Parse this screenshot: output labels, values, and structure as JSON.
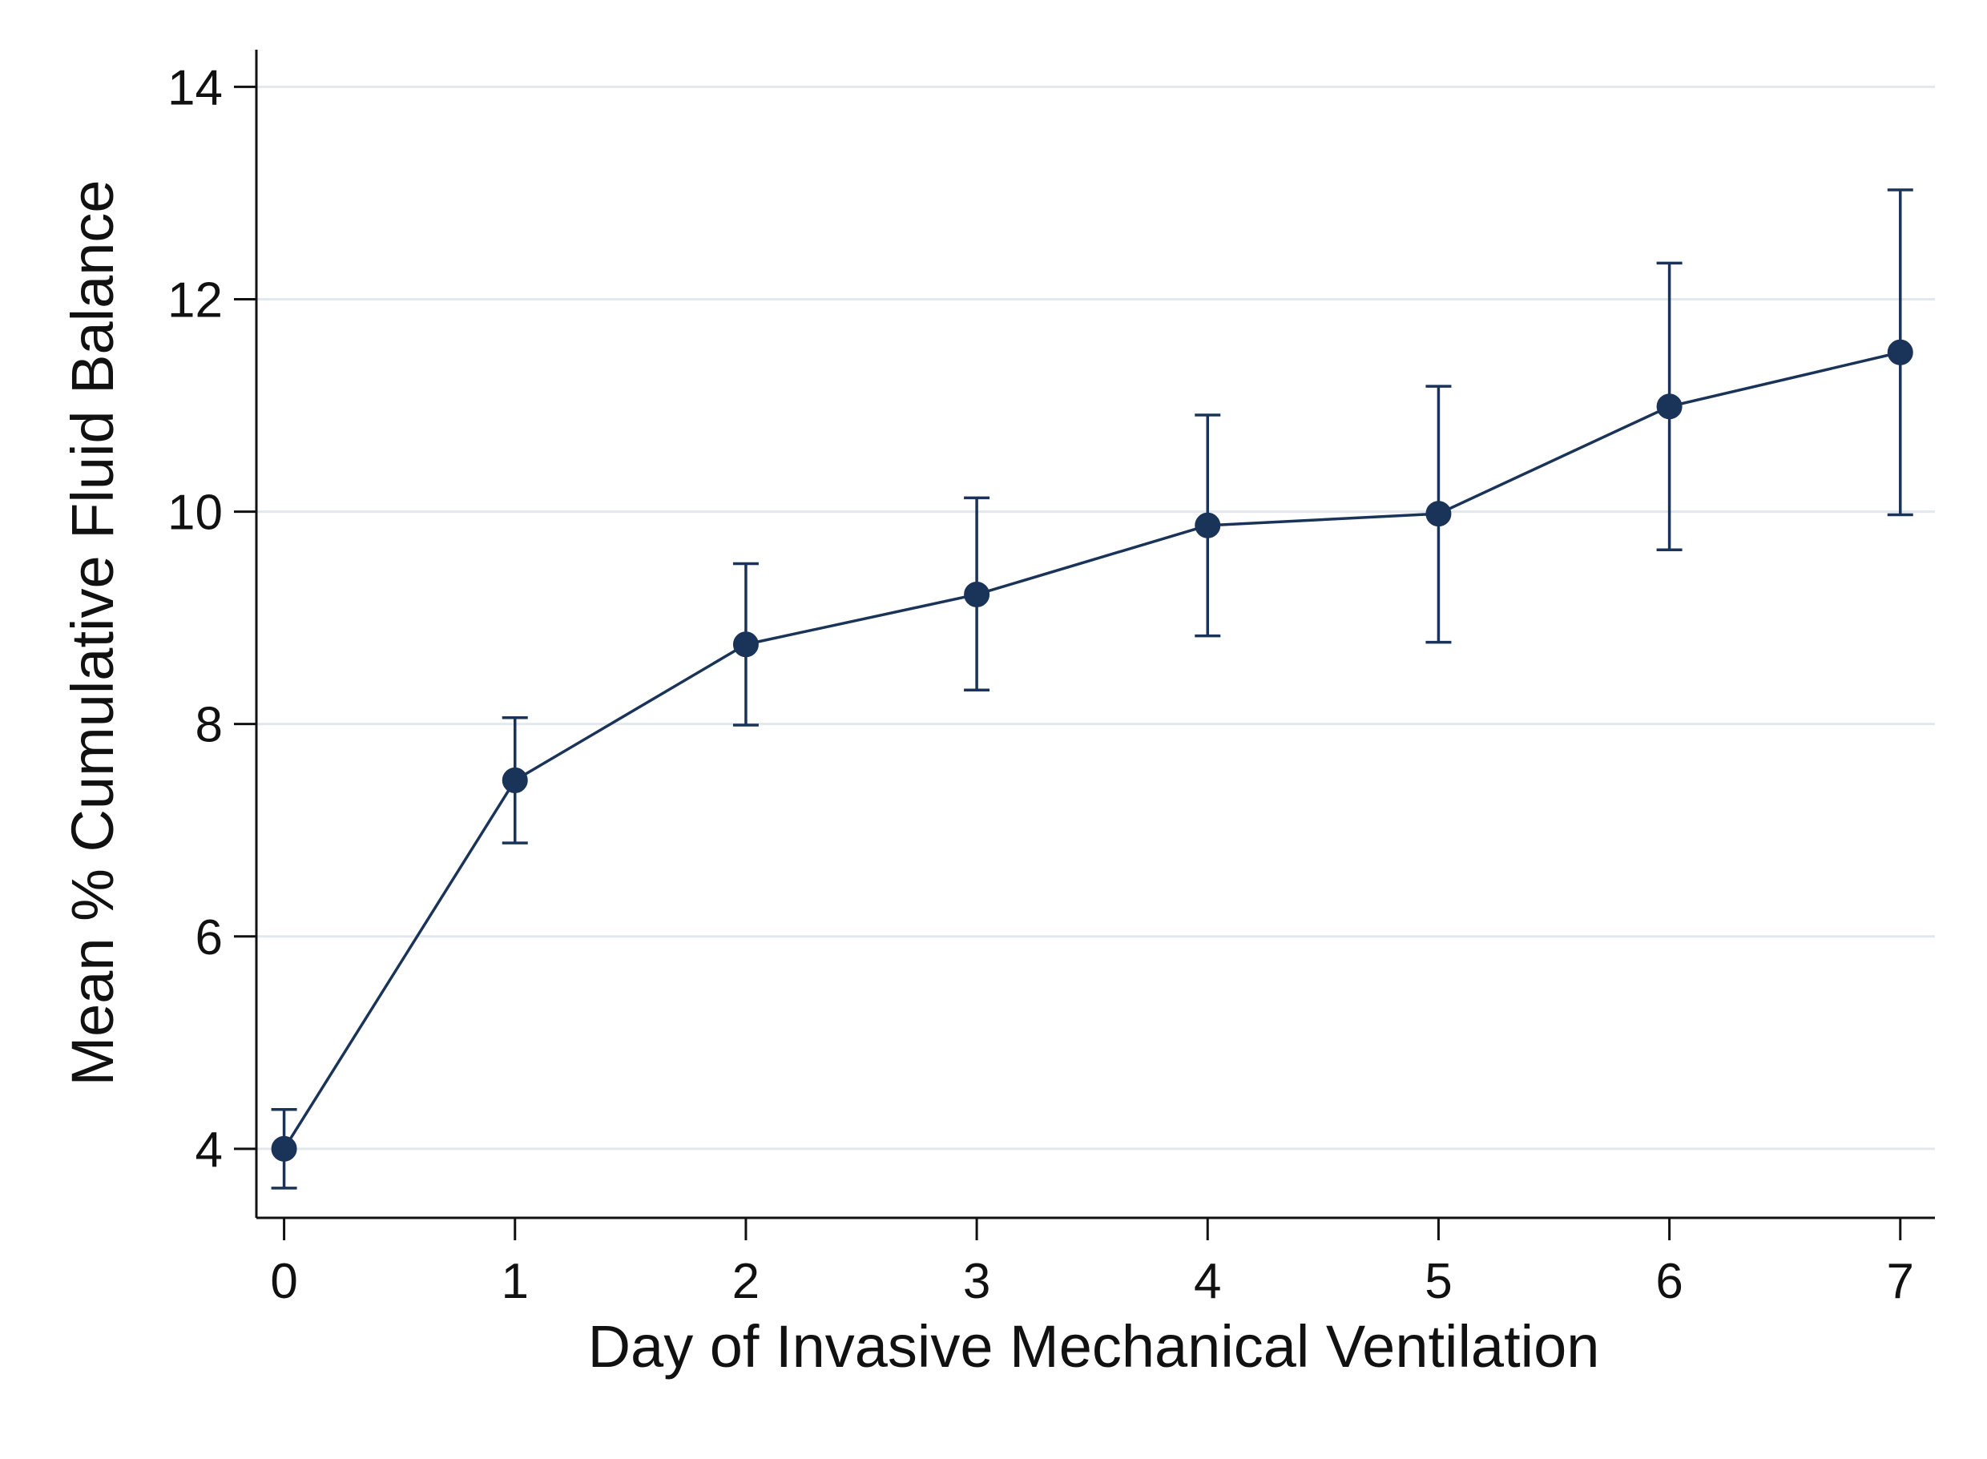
{
  "chart_data": {
    "type": "line",
    "title": "",
    "xlabel": "Day of Invasive Mechanical Ventilation",
    "ylabel": "Mean % Cumulative Fluid Balance",
    "x": [
      0,
      1,
      2,
      3,
      4,
      5,
      6,
      7
    ],
    "xlim": [
      -0.12,
      7.15
    ],
    "ylim": [
      3.35,
      14.35
    ],
    "xticks": [
      0,
      1,
      2,
      3,
      4,
      5,
      6,
      7
    ],
    "yticks": [
      4,
      6,
      8,
      10,
      12,
      14
    ],
    "grid": true,
    "legend": "none",
    "series": [
      {
        "name": "Mean % Cumulative Fluid Balance",
        "values": [
          4.0,
          7.47,
          8.75,
          9.22,
          9.87,
          9.98,
          10.99,
          11.5
        ],
        "lower": [
          3.63,
          6.88,
          7.99,
          8.32,
          8.83,
          8.77,
          9.64,
          9.97
        ],
        "upper": [
          4.37,
          8.06,
          9.51,
          10.13,
          10.91,
          11.18,
          12.34,
          13.03
        ]
      }
    ]
  },
  "colors": {
    "series": "#1a3358",
    "grid": "#e3e8ee",
    "axis": "#111111",
    "background": "#ffffff"
  }
}
